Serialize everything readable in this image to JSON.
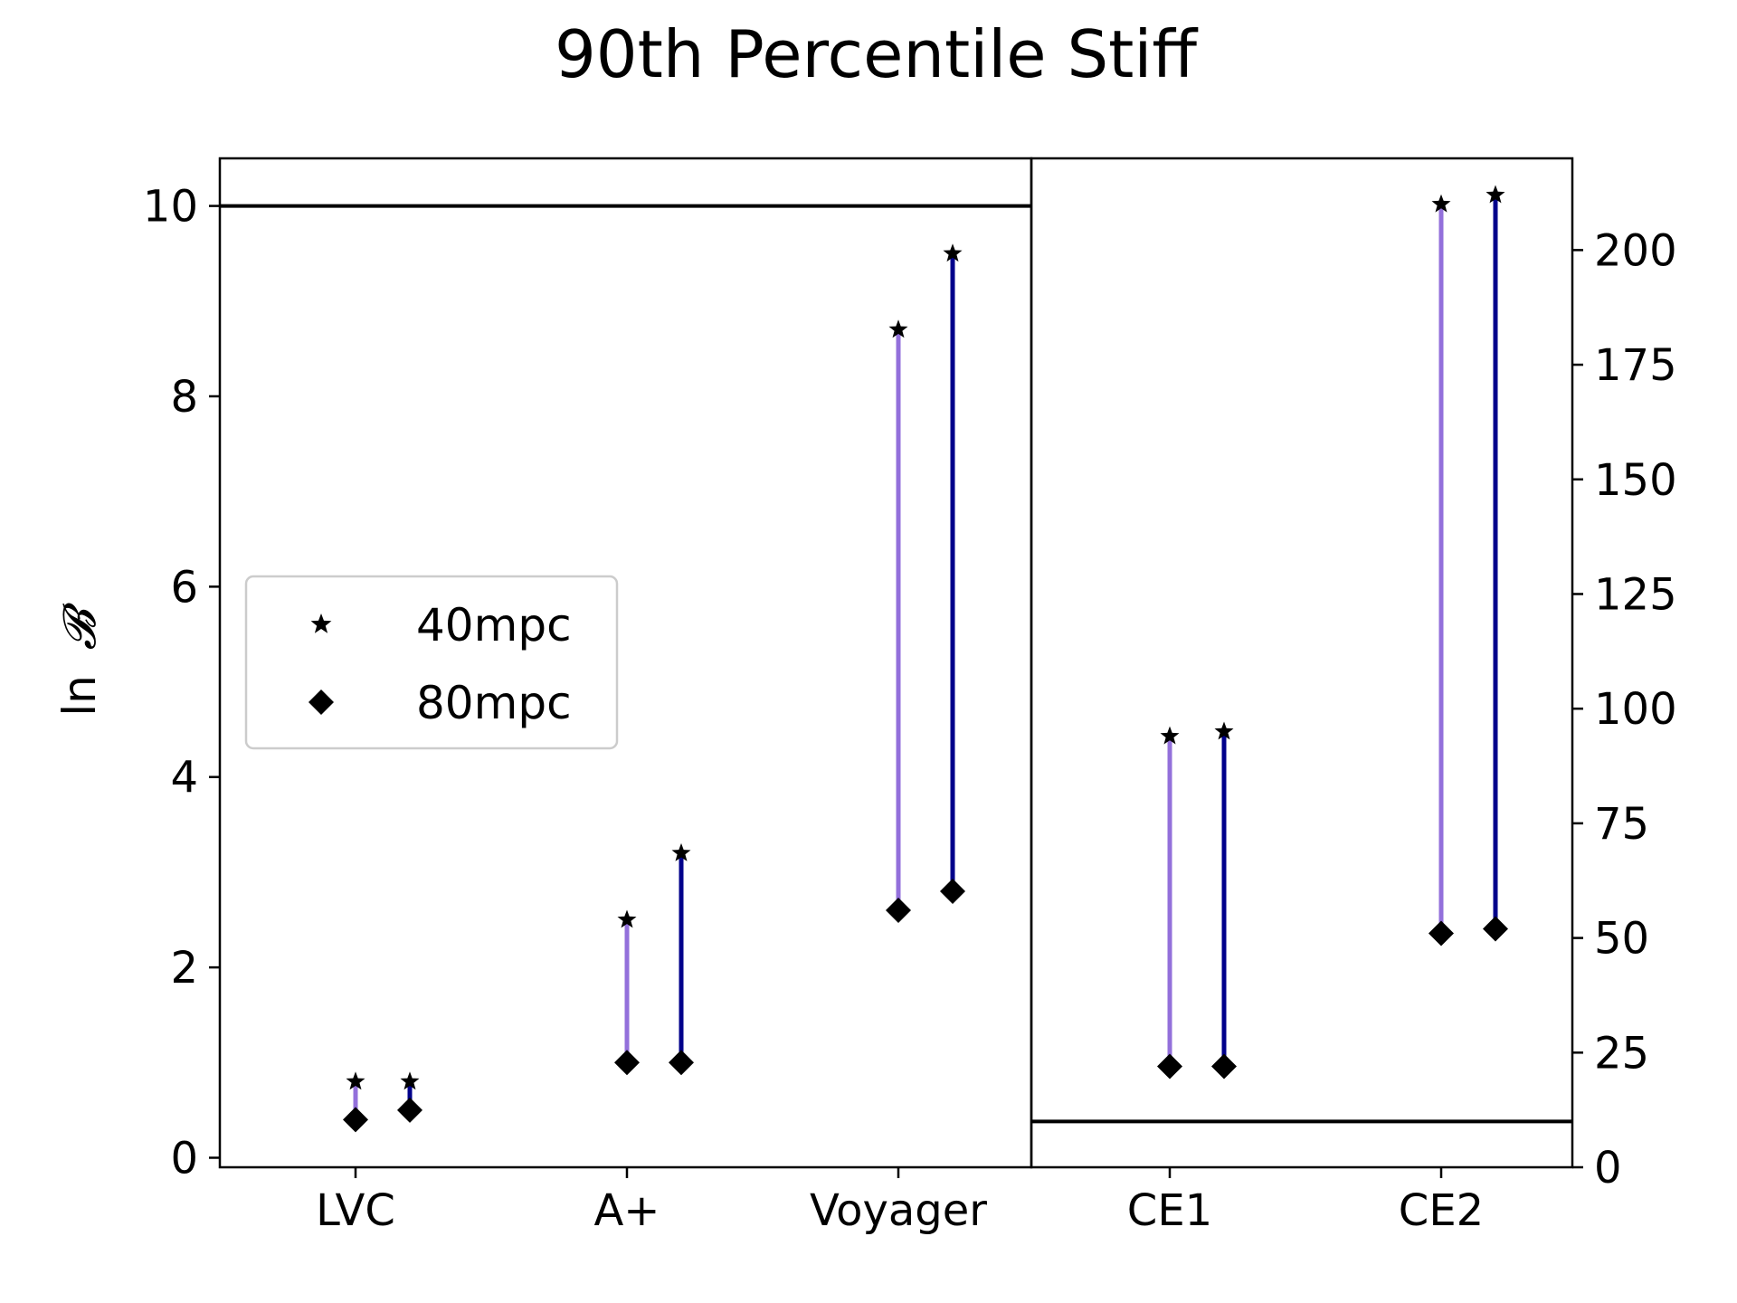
{
  "chart_data": {
    "type": "scatter",
    "title": "90th Percentile Stiff",
    "xlabel": "",
    "ylabel": "ln",
    "ylabel_symbol": "𝓑",
    "categories": [
      "LVC",
      "A+",
      "Voyager",
      "CE1",
      "CE2"
    ],
    "left_axis": {
      "ylim": [
        -0.1,
        10.5
      ],
      "ticks": [
        0,
        2,
        4,
        6,
        8,
        10
      ],
      "tick_labels": [
        "0",
        "2",
        "4",
        "6",
        "8",
        "10"
      ],
      "threshold": 10
    },
    "right_axis": {
      "ylim": [
        0,
        220
      ],
      "ticks": [
        0,
        25,
        50,
        75,
        100,
        125,
        150,
        175,
        200
      ],
      "tick_labels": [
        "0",
        "25",
        "50",
        "75",
        "100",
        "125",
        "150",
        "175",
        "200"
      ],
      "threshold": 10
    },
    "legend": {
      "placement": "center-left",
      "entries": [
        {
          "label": "40mpc",
          "marker": "star"
        },
        {
          "label": "80mpc",
          "marker": "diamond"
        }
      ]
    },
    "series": [
      {
        "color": "#9370DB",
        "offset": 0,
        "points": [
          {
            "category": "LVC",
            "axis": "left",
            "y40": 0.8,
            "y80": 0.4
          },
          {
            "category": "A+",
            "axis": "left",
            "y40": 2.5,
            "y80": 1.0
          },
          {
            "category": "Voyager",
            "axis": "left",
            "y40": 8.7,
            "y80": 2.6
          },
          {
            "category": "CE1",
            "axis": "right",
            "y40": 94,
            "y80": 22
          },
          {
            "category": "CE2",
            "axis": "right",
            "y40": 210,
            "y80": 51
          }
        ]
      },
      {
        "color": "#00008B",
        "offset": 1,
        "points": [
          {
            "category": "LVC",
            "axis": "left",
            "y40": 0.8,
            "y80": 0.5
          },
          {
            "category": "A+",
            "axis": "left",
            "y40": 3.2,
            "y80": 1.0
          },
          {
            "category": "Voyager",
            "axis": "left",
            "y40": 9.5,
            "y80": 2.8
          },
          {
            "category": "CE1",
            "axis": "right",
            "y40": 95,
            "y80": 22
          },
          {
            "category": "CE2",
            "axis": "right",
            "y40": 212,
            "y80": 52
          }
        ]
      }
    ],
    "grid": false
  }
}
